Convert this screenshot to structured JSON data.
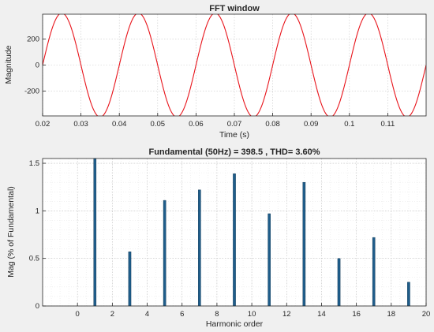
{
  "chart_data": [
    {
      "type": "line",
      "title": "FFT window",
      "xlabel": "Time (s)",
      "ylabel": "Magnitude",
      "xlim": [
        0.02,
        0.12
      ],
      "ylim": [
        -390,
        390
      ],
      "xticks": [
        0.02,
        0.03,
        0.04,
        0.05,
        0.06,
        0.07,
        0.08,
        0.09,
        0.1,
        0.11
      ],
      "xtick_labels": [
        "0.02",
        "0.03",
        "0.04",
        "0.05",
        "0.06",
        "0.07",
        "0.08",
        "0.09",
        "0.1",
        "0.11"
      ],
      "yticks": [
        -200,
        0,
        200
      ],
      "ytick_labels": [
        "-200",
        "0",
        "200"
      ],
      "grid": true,
      "line_color": "#e8141b",
      "signal": {
        "amplitude": 398.5,
        "frequency_hz": 50,
        "phase_rad": 0
      }
    },
    {
      "type": "bar",
      "title": "Fundamental (50Hz) = 398.5 , THD= 3.60%",
      "xlabel": "Harmonic order",
      "ylabel": "Mag (% of Fundamental)",
      "xlim": [
        -2,
        20
      ],
      "ylim": [
        0,
        1.55
      ],
      "xticks": [
        0,
        2,
        4,
        6,
        8,
        10,
        12,
        14,
        16,
        18,
        20
      ],
      "xtick_labels": [
        "0",
        "2",
        "4",
        "6",
        "8",
        "10",
        "12",
        "14",
        "16",
        "18",
        "20"
      ],
      "yticks": [
        0,
        0.5,
        1,
        1.5
      ],
      "ytick_labels": [
        "0",
        "0.5",
        "1",
        "1.5"
      ],
      "categories": [
        1,
        3,
        5,
        7,
        9,
        11,
        13,
        15,
        17,
        19
      ],
      "values": [
        1.55,
        0.57,
        1.11,
        1.22,
        1.39,
        0.97,
        1.3,
        0.5,
        0.72,
        0.25
      ],
      "grid": true,
      "minor_grid": true,
      "bar_color": "#1f5d8a"
    }
  ]
}
